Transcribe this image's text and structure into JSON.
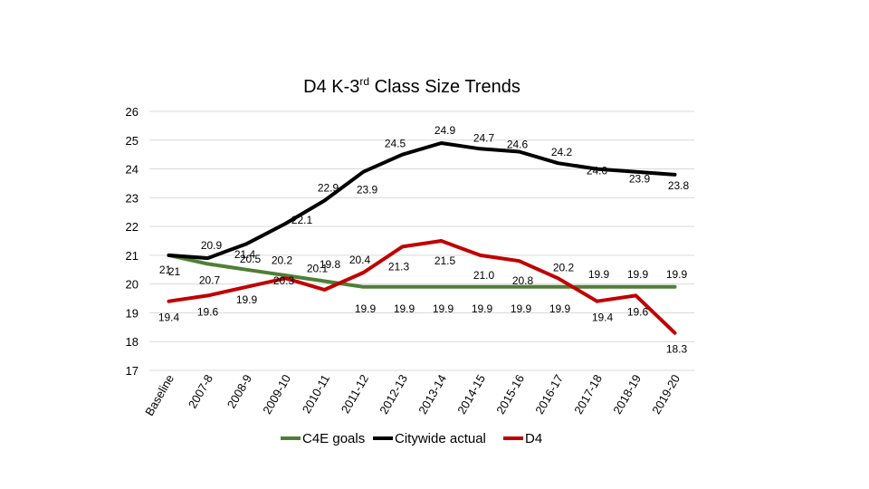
{
  "chart_data": {
    "type": "line",
    "title": "D4 K-3rd Class Size Trends",
    "title_main": "D4 K-3",
    "title_sup": "rd",
    "title_rest": " Class Size Trends",
    "ylim": [
      17,
      26
    ],
    "yticks": [
      "17",
      "18",
      "19",
      "20",
      "21",
      "22",
      "23",
      "24",
      "25",
      "26"
    ],
    "categories": [
      "Baseline",
      "2007-8",
      "2008-9",
      "2009-10",
      "2010-11",
      "2011-12",
      "2012-13",
      "2013-14",
      "2014-15",
      "2015-16",
      "2016-17",
      "2017-18",
      "2018-19",
      "2019-20"
    ],
    "series": [
      {
        "name": "C4E goals",
        "color": "#4f7f35",
        "values": [
          21,
          20.7,
          20.5,
          20.3,
          20.1,
          19.9,
          19.9,
          19.9,
          19.9,
          19.9,
          19.9,
          19.9,
          19.9,
          19.9
        ],
        "labels": [
          "21",
          "20.7",
          "20.5",
          "20.3",
          "20.1",
          "19.9",
          "19.9",
          "19.9",
          "19.9",
          "19.9",
          "19.9",
          "19.9",
          "19.9",
          "19.9"
        ]
      },
      {
        "name": "Citywide actual",
        "color": "#000000",
        "values": [
          21,
          20.9,
          21.4,
          22.1,
          22.9,
          23.9,
          24.5,
          24.9,
          24.7,
          24.6,
          24.2,
          24.0,
          23.9,
          23.8
        ],
        "labels": [
          "21",
          "20.9",
          "21.4",
          "22.1",
          "22.9",
          "23.9",
          "24.5",
          "24.9",
          "24.7",
          "24.6",
          "24.2",
          "24.0",
          "23.9",
          "23.8"
        ]
      },
      {
        "name": "D4",
        "color": "#c00000",
        "values": [
          19.4,
          19.6,
          19.9,
          20.2,
          19.8,
          20.4,
          21.3,
          21.5,
          21.0,
          20.8,
          20.2,
          19.4,
          19.6,
          18.3
        ],
        "labels": [
          "19.4",
          "19.6",
          "19.9",
          "20.2",
          "19.8",
          "20.4",
          "21.3",
          "21.5",
          "21.0",
          "20.8",
          "20.2",
          "19.4",
          "19.6",
          "18.3"
        ]
      }
    ],
    "legend_position": "bottom",
    "grid": true
  }
}
